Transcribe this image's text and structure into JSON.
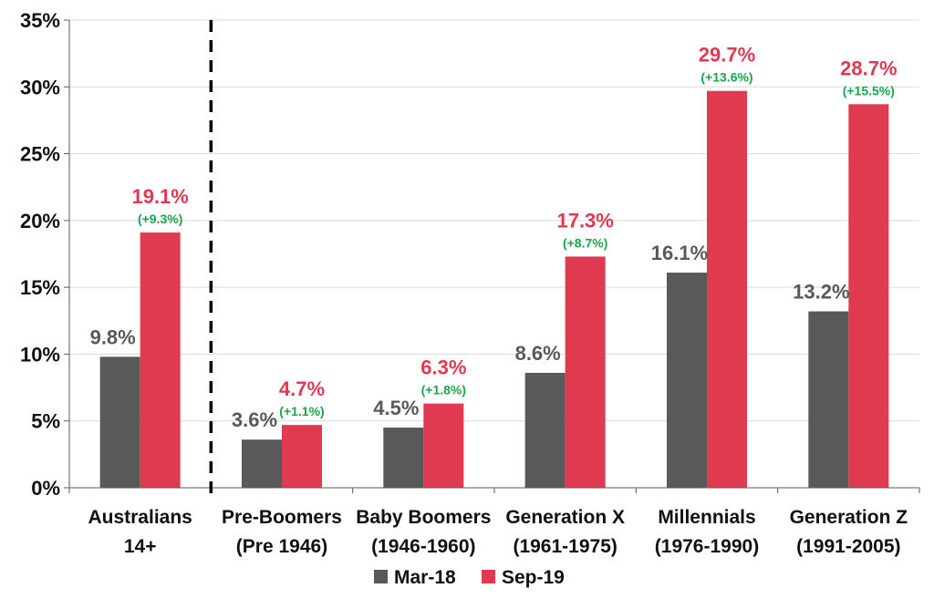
{
  "chart_data": {
    "type": "bar",
    "categories": [
      [
        "Australians",
        "14+"
      ],
      [
        "Pre-Boomers",
        "(Pre 1946)"
      ],
      [
        "Baby Boomers",
        "(1946-1960)"
      ],
      [
        "Generation X",
        "(1961-1975)"
      ],
      [
        "Millennials",
        "(1976-1990)"
      ],
      [
        "Generation Z",
        "(1991-2005)"
      ]
    ],
    "series": [
      {
        "name": "Mar-18",
        "color": "#595959",
        "values": [
          9.8,
          3.6,
          4.5,
          8.6,
          16.1,
          13.2
        ],
        "labels": [
          "9.8%",
          "3.6%",
          "4.5%",
          "8.6%",
          "16.1%",
          "13.2%"
        ]
      },
      {
        "name": "Sep-19",
        "color": "#e03a50",
        "values": [
          19.1,
          4.7,
          6.3,
          17.3,
          29.7,
          28.7
        ],
        "labels": [
          "19.1%",
          "4.7%",
          "6.3%",
          "17.3%",
          "29.7%",
          "28.7%"
        ]
      }
    ],
    "change_labels": [
      "(+9.3%)",
      "(+1.1%)",
      "(+1.8%)",
      "(+8.7%)",
      "(+13.6%)",
      "(+15.5%)"
    ],
    "change_color": "#1aa64a",
    "y_ticks": [
      "0%",
      "5%",
      "10%",
      "15%",
      "20%",
      "25%",
      "30%",
      "35%"
    ],
    "ylim": [
      0,
      35
    ],
    "grid": true,
    "legend_position": "bottom",
    "divider_after_category": 1
  }
}
